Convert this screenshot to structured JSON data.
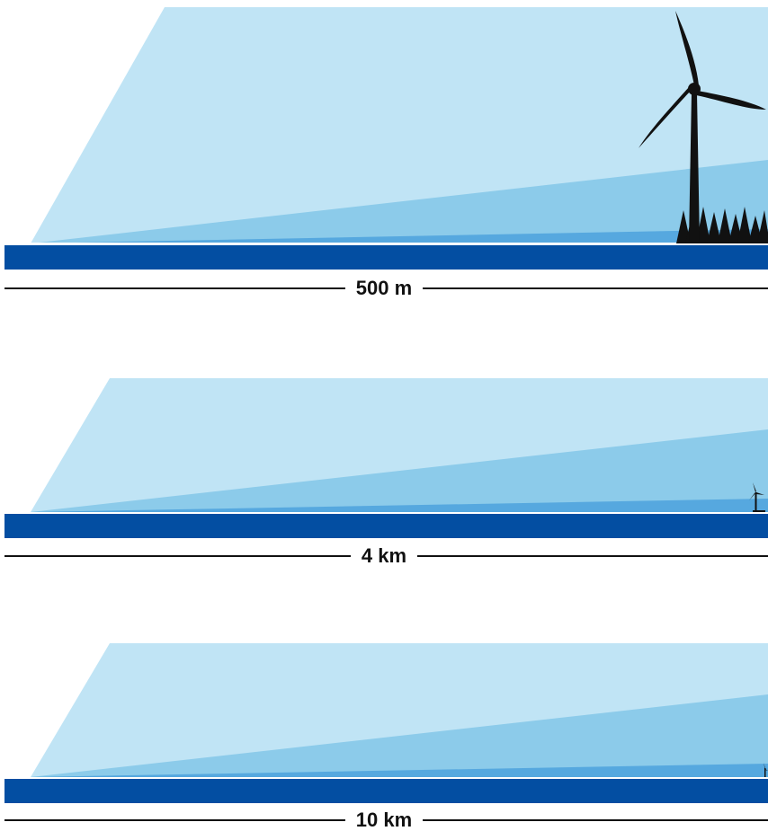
{
  "colors": {
    "sky_light": "#c0e4f5",
    "sky_mid": "#8ccbea",
    "sky_dark": "#56a8df",
    "ground": "#034ea2",
    "silhouette": "#111111"
  },
  "panels": [
    {
      "distance_label": "500 m",
      "turbine": "large"
    },
    {
      "distance_label": "4 km",
      "turbine": "small"
    },
    {
      "distance_label": "10 km",
      "turbine": "tiny"
    }
  ]
}
